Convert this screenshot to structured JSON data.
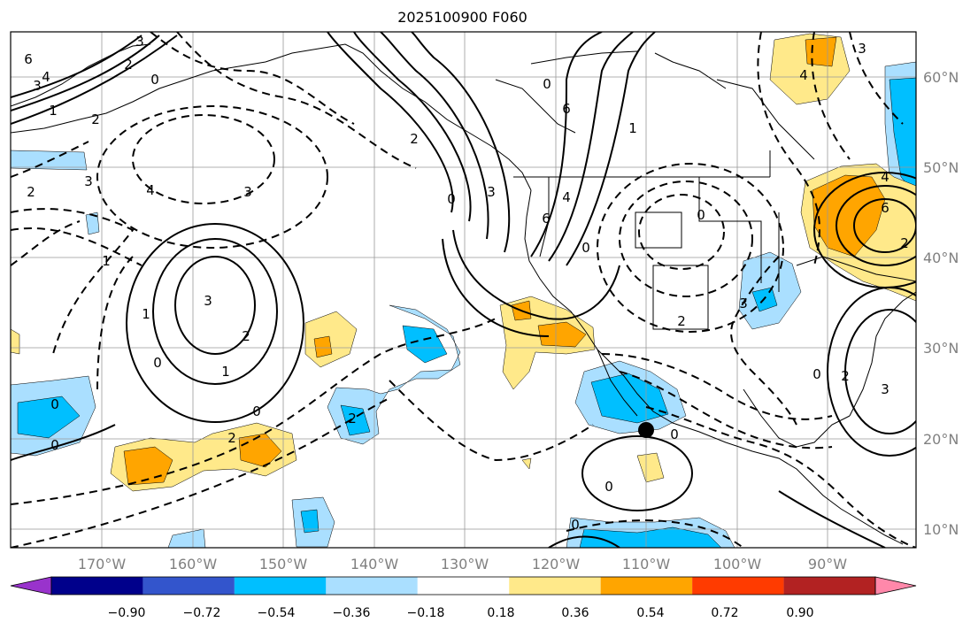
{
  "title": "2025100900 F060",
  "map": {
    "lon_labels": [
      "170°W",
      "160°W",
      "150°W",
      "140°W",
      "130°W",
      "120°W",
      "110°W",
      "100°W",
      "90°W"
    ],
    "lat_labels": [
      "60°N",
      "50°N",
      "40°N",
      "30°N",
      "20°N",
      "10°N"
    ],
    "marker": "storm-center"
  },
  "colorbar": {
    "tick_labels": [
      "−0.90",
      "−0.72",
      "−0.54",
      "−0.36",
      "−0.18",
      "0.18",
      "0.36",
      "0.54",
      "0.72",
      "0.90"
    ],
    "colors": [
      "#9933cc",
      "#00008b",
      "#3355cc",
      "#00bfff",
      "#aadfff",
      "#ffffff",
      "#ffe98a",
      "#ffa500",
      "#ff3b00",
      "#b22222",
      "#ff88aa"
    ]
  },
  "contour_labels": [
    {
      "text": "6"
    },
    {
      "text": "4"
    },
    {
      "text": "2"
    },
    {
      "text": "0"
    },
    {
      "text": "3"
    },
    {
      "text": "3"
    },
    {
      "text": "1"
    },
    {
      "text": "2"
    },
    {
      "text": "3"
    },
    {
      "text": "2"
    },
    {
      "text": "4"
    },
    {
      "text": "3"
    },
    {
      "text": "3"
    },
    {
      "text": "2"
    },
    {
      "text": "1"
    },
    {
      "text": "0"
    },
    {
      "text": "0"
    },
    {
      "text": "1"
    },
    {
      "text": "0"
    },
    {
      "text": "2"
    },
    {
      "text": "0"
    },
    {
      "text": "2"
    },
    {
      "text": "3"
    },
    {
      "text": "0"
    },
    {
      "text": "6"
    },
    {
      "text": "4"
    },
    {
      "text": "0"
    },
    {
      "text": "1"
    },
    {
      "text": "6"
    },
    {
      "text": "0"
    },
    {
      "text": "2"
    },
    {
      "text": "1"
    },
    {
      "text": "3"
    },
    {
      "text": "2"
    },
    {
      "text": "4"
    },
    {
      "text": "0"
    },
    {
      "text": "3"
    },
    {
      "text": "2"
    },
    {
      "text": "0"
    },
    {
      "text": "0"
    },
    {
      "text": "0"
    },
    {
      "text": "3"
    },
    {
      "text": "2"
    },
    {
      "text": "6"
    },
    {
      "text": "4"
    },
    {
      "text": "0"
    }
  ]
}
